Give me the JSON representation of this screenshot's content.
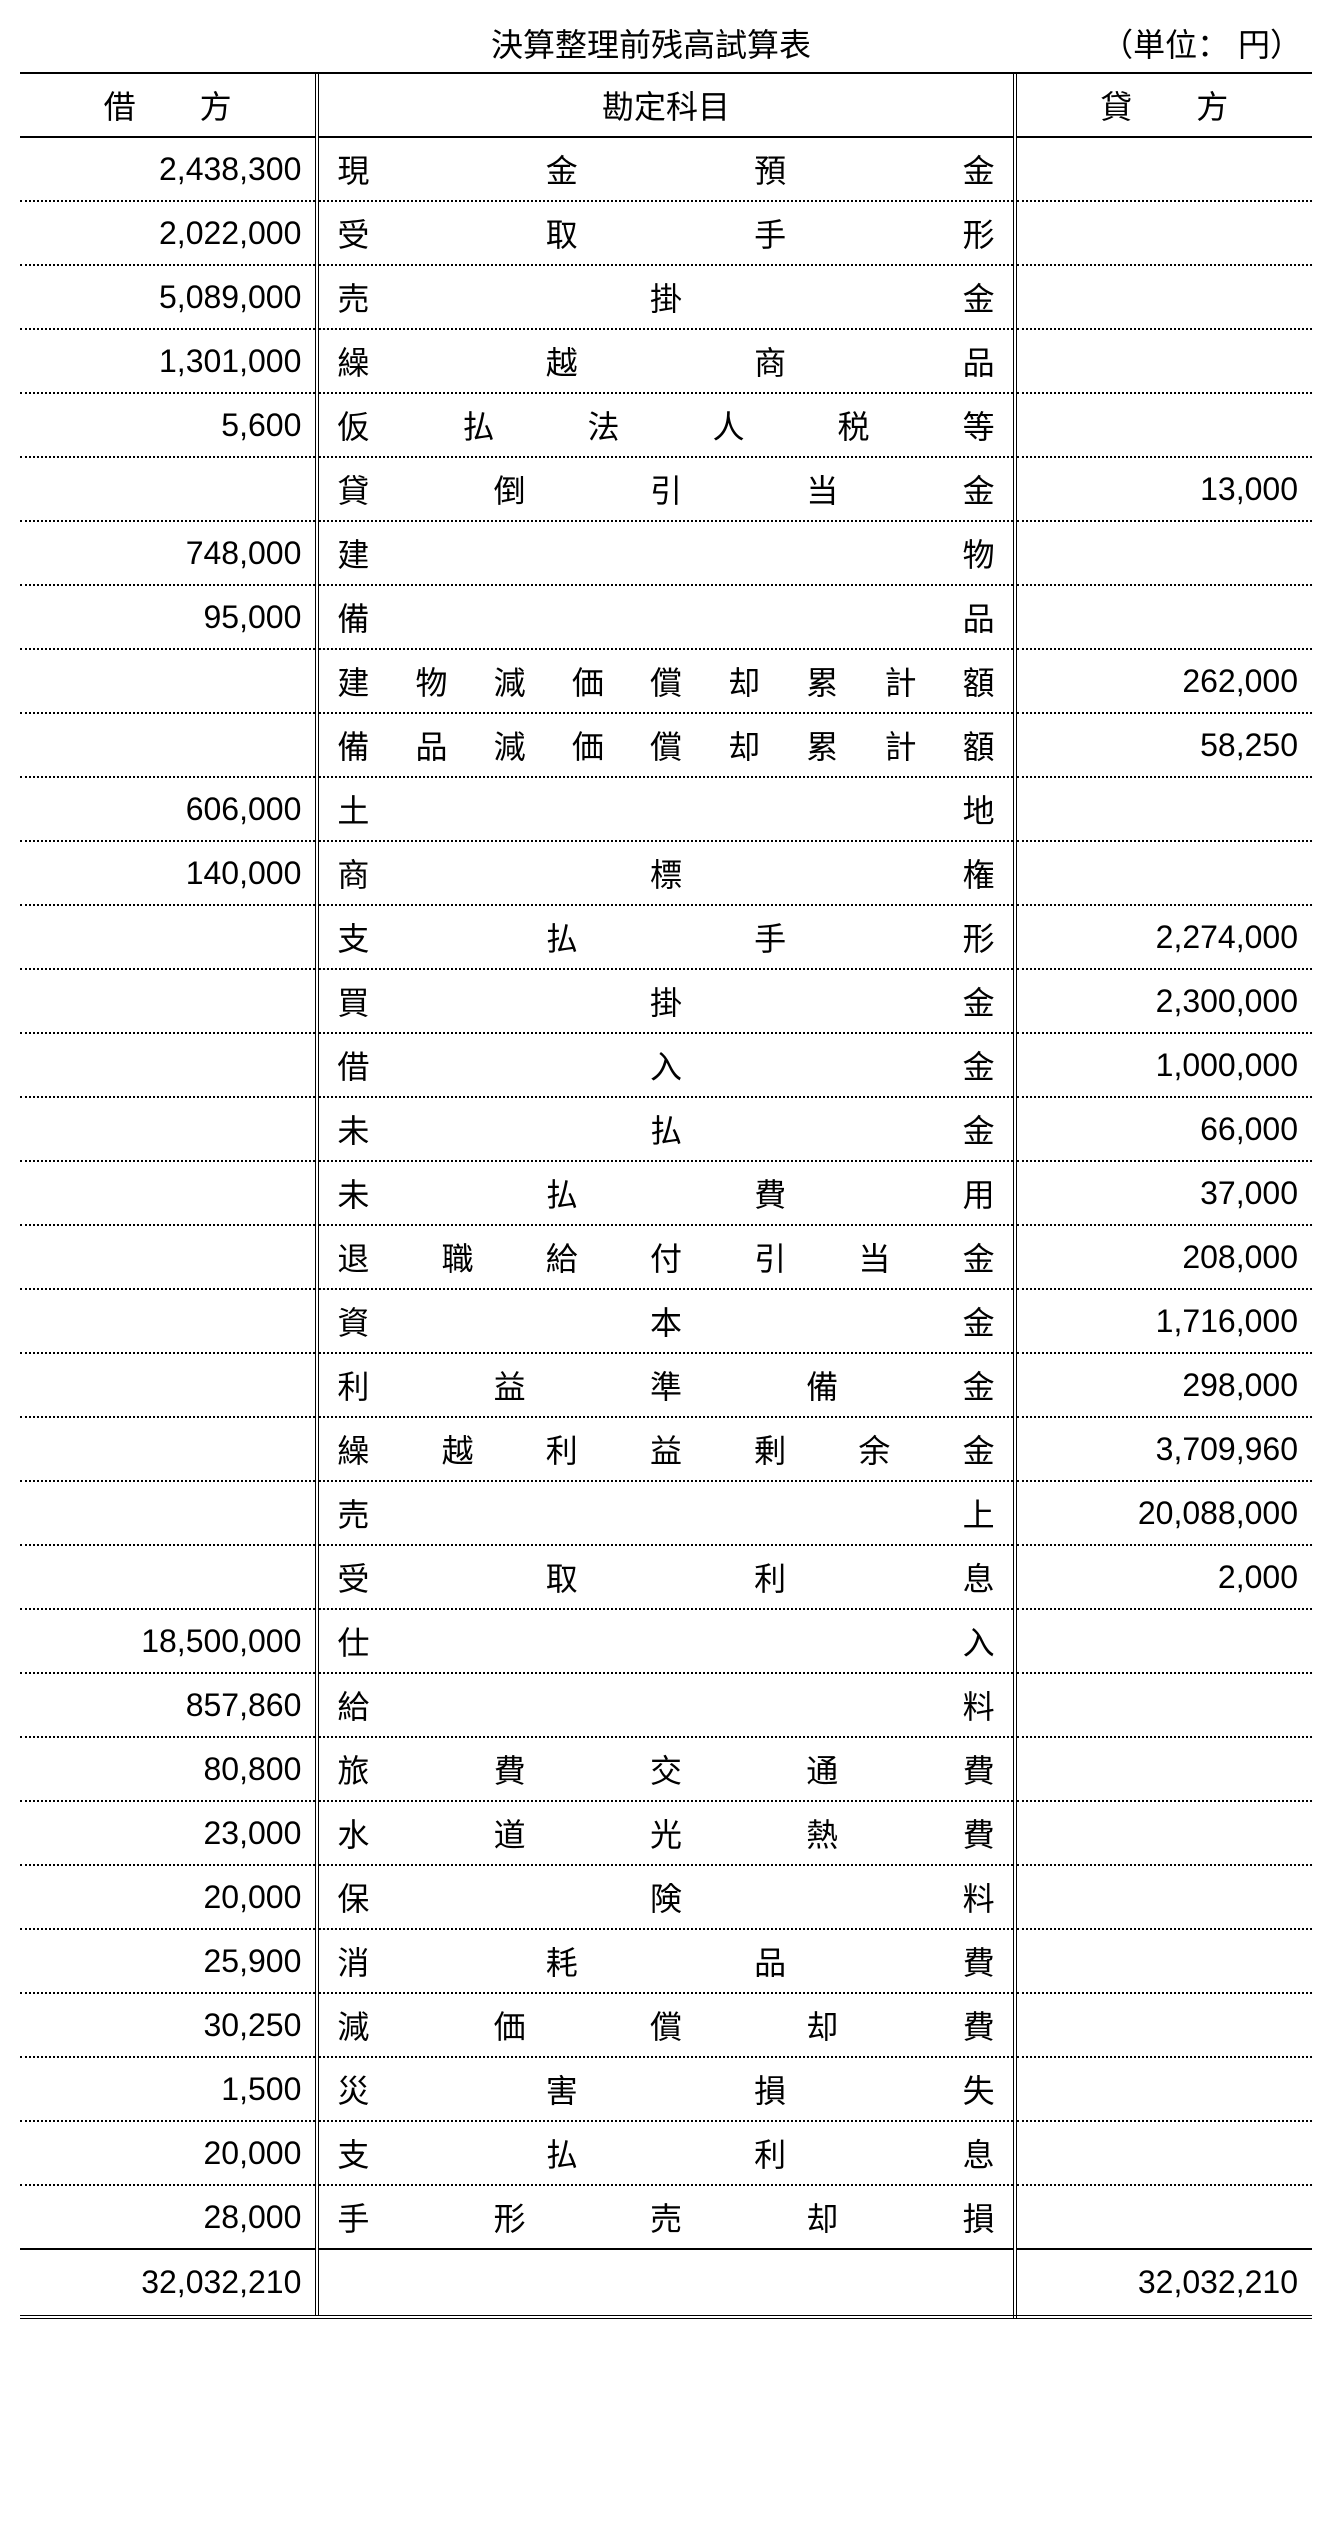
{
  "title": "決算整理前残高試算表",
  "unit_label": "（単位： 円）",
  "columns": {
    "debit": "借　　方",
    "account": "勘定科目",
    "credit": "貸　　方"
  },
  "rows": [
    {
      "debit": "2,438,300",
      "account": "現金預金",
      "credit": ""
    },
    {
      "debit": "2,022,000",
      "account": "受取手形",
      "credit": ""
    },
    {
      "debit": "5,089,000",
      "account": "売掛金",
      "credit": ""
    },
    {
      "debit": "1,301,000",
      "account": "繰越商品",
      "credit": ""
    },
    {
      "debit": "5,600",
      "account": "仮払法人税等",
      "credit": ""
    },
    {
      "debit": "",
      "account": "貸倒引当金",
      "credit": "13,000"
    },
    {
      "debit": "748,000",
      "account": "建物",
      "credit": ""
    },
    {
      "debit": "95,000",
      "account": "備品",
      "credit": ""
    },
    {
      "debit": "",
      "account": "建物減価償却累計額",
      "credit": "262,000"
    },
    {
      "debit": "",
      "account": "備品減価償却累計額",
      "credit": "58,250"
    },
    {
      "debit": "606,000",
      "account": "土地",
      "credit": ""
    },
    {
      "debit": "140,000",
      "account": "商標権",
      "credit": ""
    },
    {
      "debit": "",
      "account": "支払手形",
      "credit": "2,274,000"
    },
    {
      "debit": "",
      "account": "買掛金",
      "credit": "2,300,000"
    },
    {
      "debit": "",
      "account": "借入金",
      "credit": "1,000,000"
    },
    {
      "debit": "",
      "account": "未払金",
      "credit": "66,000"
    },
    {
      "debit": "",
      "account": "未払費用",
      "credit": "37,000"
    },
    {
      "debit": "",
      "account": "退職給付引当金",
      "credit": "208,000"
    },
    {
      "debit": "",
      "account": "資本金",
      "credit": "1,716,000"
    },
    {
      "debit": "",
      "account": "利益準備金",
      "credit": "298,000"
    },
    {
      "debit": "",
      "account": "繰越利益剰余金",
      "credit": "3,709,960"
    },
    {
      "debit": "",
      "account": "売上",
      "credit": "20,088,000"
    },
    {
      "debit": "",
      "account": "受取利息",
      "credit": "2,000"
    },
    {
      "debit": "18,500,000",
      "account": "仕入",
      "credit": ""
    },
    {
      "debit": "857,860",
      "account": "給料",
      "credit": ""
    },
    {
      "debit": "80,800",
      "account": "旅費交通費",
      "credit": ""
    },
    {
      "debit": "23,000",
      "account": "水道光熱費",
      "credit": ""
    },
    {
      "debit": "20,000",
      "account": "保険料",
      "credit": ""
    },
    {
      "debit": "25,900",
      "account": "消耗品費",
      "credit": ""
    },
    {
      "debit": "30,250",
      "account": "減価償却費",
      "credit": ""
    },
    {
      "debit": "1,500",
      "account": "災害損失",
      "credit": ""
    },
    {
      "debit": "20,000",
      "account": "支払利息",
      "credit": ""
    },
    {
      "debit": "28,000",
      "account": "手形売却損",
      "credit": ""
    }
  ],
  "totals": {
    "debit": "32,032,210",
    "credit": "32,032,210"
  },
  "style": {
    "text_color": "#000000",
    "bg_color": "#ffffff",
    "row_border": "dotted",
    "header_border": "solid",
    "total_border": "double",
    "account_align": "justify",
    "amount_align": "right",
    "font_size_pt": 32
  }
}
